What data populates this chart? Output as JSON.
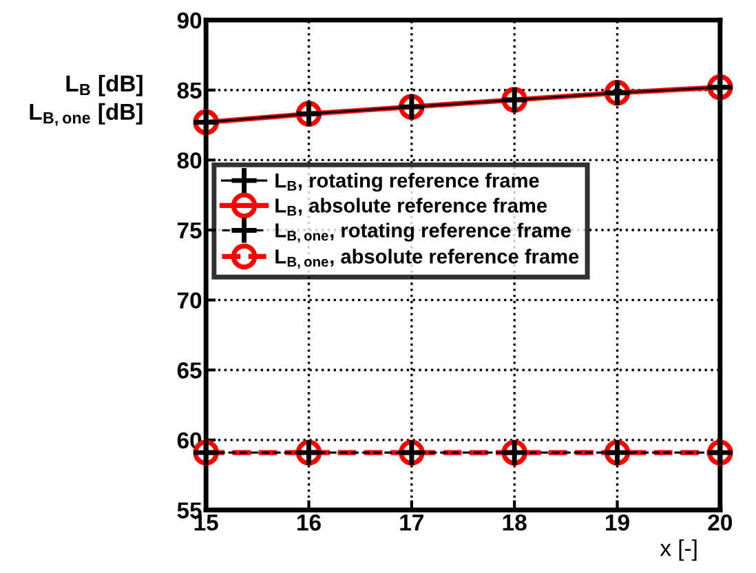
{
  "chart_data": {
    "type": "line",
    "xlabel": "x [-]",
    "ylabel": "L$_{B}$ [dB]\nL$_{B,one}$ [dB]",
    "x": [
      15,
      16,
      17,
      18,
      19,
      20
    ],
    "xlim": [
      15,
      20
    ],
    "xticks": [
      15,
      16,
      17,
      18,
      19,
      20
    ],
    "ylim": [
      55,
      90
    ],
    "yticks": [
      55,
      60,
      65,
      70,
      75,
      80,
      85,
      90
    ],
    "grid": true,
    "legend": "left",
    "series": [
      {
        "name": "L$_{B}$, rotating reference frame",
        "color": "#000000",
        "marker": "cross",
        "line_style": "solid",
        "values": [
          82.7,
          83.3,
          83.8,
          84.3,
          84.8,
          85.2
        ]
      },
      {
        "name": "L$_{B}$, absolute reference frame",
        "color": "#ff0000",
        "marker": "circle",
        "line_style": "solid",
        "values": [
          82.7,
          83.3,
          83.8,
          84.3,
          84.8,
          85.2
        ]
      },
      {
        "name": "L$_{B,one}$, rotating reference frame",
        "color": "#000000",
        "marker": "cross",
        "line_style": "dashed",
        "values": [
          59.1,
          59.1,
          59.1,
          59.1,
          59.1,
          59.1
        ]
      },
      {
        "name": "L$_{B,one}$, absolute reference frame",
        "color": "#ff0000",
        "marker": "circle",
        "line_style": "dashed",
        "values": [
          59.1,
          59.1,
          59.1,
          59.1,
          59.1,
          59.1
        ]
      }
    ]
  }
}
